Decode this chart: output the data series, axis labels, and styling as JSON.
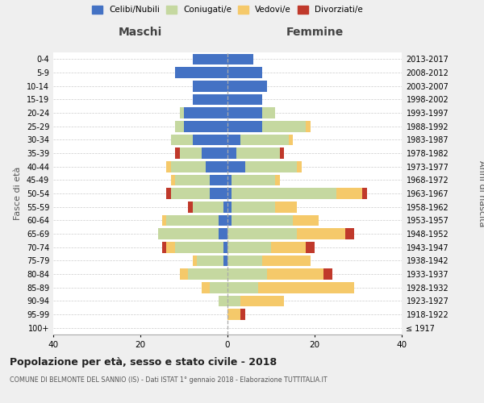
{
  "age_groups": [
    "100+",
    "95-99",
    "90-94",
    "85-89",
    "80-84",
    "75-79",
    "70-74",
    "65-69",
    "60-64",
    "55-59",
    "50-54",
    "45-49",
    "40-44",
    "35-39",
    "30-34",
    "25-29",
    "20-24",
    "15-19",
    "10-14",
    "5-9",
    "0-4"
  ],
  "birth_years": [
    "≤ 1917",
    "1918-1922",
    "1923-1927",
    "1928-1932",
    "1933-1937",
    "1938-1942",
    "1943-1947",
    "1948-1952",
    "1953-1957",
    "1958-1962",
    "1963-1967",
    "1968-1972",
    "1973-1977",
    "1978-1982",
    "1983-1987",
    "1988-1992",
    "1993-1997",
    "1998-2002",
    "2003-2007",
    "2008-2012",
    "2013-2017"
  ],
  "colors": {
    "celibi": "#4472c4",
    "coniugati": "#c5d8a0",
    "vedovi": "#f5c96a",
    "divorziati": "#c0392b"
  },
  "maschi": {
    "celibi": [
      0,
      0,
      0,
      0,
      0,
      1,
      1,
      2,
      2,
      1,
      4,
      4,
      5,
      6,
      8,
      10,
      10,
      8,
      8,
      12,
      8
    ],
    "coniugati": [
      0,
      0,
      2,
      4,
      9,
      6,
      11,
      14,
      12,
      7,
      9,
      8,
      8,
      5,
      5,
      2,
      1,
      0,
      0,
      0,
      0
    ],
    "vedovi": [
      0,
      0,
      0,
      2,
      2,
      1,
      2,
      0,
      1,
      0,
      0,
      1,
      1,
      0,
      0,
      0,
      0,
      0,
      0,
      0,
      0
    ],
    "divorziati": [
      0,
      0,
      0,
      0,
      0,
      0,
      1,
      0,
      0,
      1,
      1,
      0,
      0,
      1,
      0,
      0,
      0,
      0,
      0,
      0,
      0
    ]
  },
  "femmine": {
    "celibi": [
      0,
      0,
      0,
      0,
      0,
      0,
      0,
      0,
      1,
      1,
      1,
      1,
      4,
      2,
      3,
      8,
      8,
      8,
      9,
      8,
      6
    ],
    "coniugati": [
      0,
      0,
      3,
      7,
      9,
      8,
      10,
      16,
      14,
      10,
      24,
      10,
      12,
      10,
      11,
      10,
      3,
      0,
      0,
      0,
      0
    ],
    "vedovi": [
      0,
      3,
      10,
      22,
      13,
      11,
      8,
      11,
      6,
      5,
      6,
      1,
      1,
      0,
      1,
      1,
      0,
      0,
      0,
      0,
      0
    ],
    "divorziati": [
      0,
      1,
      0,
      0,
      2,
      0,
      2,
      2,
      0,
      0,
      1,
      0,
      0,
      1,
      0,
      0,
      0,
      0,
      0,
      0,
      0
    ]
  },
  "xlim": 40,
  "title": "Popolazione per età, sesso e stato civile - 2018",
  "subtitle": "COMUNE DI BELMONTE DEL SANNIO (IS) - Dati ISTAT 1° gennaio 2018 - Elaborazione TUTTITALIA.IT",
  "xlabel_left": "Maschi",
  "xlabel_right": "Femmine",
  "ylabel_left": "Fasce di età",
  "ylabel_right": "Anni di nascita",
  "bg_color": "#efefef",
  "plot_bg_color": "#ffffff",
  "grid_color": "#cccccc"
}
